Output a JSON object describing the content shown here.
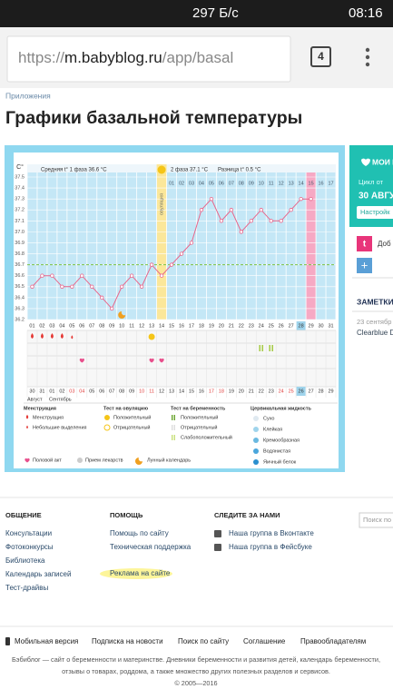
{
  "status_bar": {
    "speed": "297 Б/с",
    "time": "08:16"
  },
  "browser": {
    "url_scheme": "https://",
    "url_host": "m.babyblog.ru",
    "url_path": "/app/basal",
    "tab_count": 4
  },
  "breadcrumb": "Приложения",
  "title": "Графики базальной температуры",
  "chart_data": {
    "type": "line",
    "y_label": "C°",
    "summary": {
      "phase1": "Средняя t° 1 фаза 36.6 °C",
      "phase2": "2 фаза 37.1 °C",
      "difference": "Разница t° 0.5 °C"
    },
    "ovulation_label": "овуляция",
    "ovulation_index": 13,
    "categories": [
      "01",
      "02",
      "03",
      "04",
      "05",
      "06",
      "07",
      "08",
      "09",
      "10",
      "11",
      "12",
      "13",
      "14",
      "15",
      "16",
      "17",
      "18",
      "19",
      "20",
      "21",
      "22",
      "23",
      "24",
      "25",
      "26",
      "27",
      "28",
      "29",
      "30",
      "31"
    ],
    "phase2_days": [
      "01",
      "02",
      "03",
      "04",
      "05",
      "06",
      "07",
      "08",
      "09",
      "10",
      "11",
      "12",
      "13",
      "14",
      "15",
      "16",
      "17"
    ],
    "values": [
      36.5,
      36.6,
      36.6,
      36.5,
      36.5,
      36.6,
      36.5,
      36.4,
      36.3,
      36.5,
      36.6,
      36.5,
      36.7,
      36.6,
      36.7,
      36.8,
      36.9,
      37.2,
      37.3,
      37.1,
      37.2,
      37.0,
      37.1,
      37.2,
      37.1,
      37.1,
      37.2,
      37.3,
      37.3,
      null,
      null
    ],
    "color": "#e8658a",
    "coverline": 36.7,
    "coverline_color": "#7cc242",
    "today_index": 27,
    "period_index": 28,
    "ylim": [
      36.2,
      37.5
    ],
    "yticks": [
      36.2,
      36.3,
      36.4,
      36.5,
      36.6,
      36.7,
      36.8,
      36.9,
      {
        "value": 37,
        "label": "37.0"
      },
      37.1,
      37.2,
      37.3,
      37.4,
      37.5
    ],
    "dates": [
      "30",
      "31",
      "01",
      "02",
      "03",
      "04",
      "05",
      "06",
      "07",
      "08",
      "09",
      "10",
      "11",
      "12",
      "13",
      "14",
      "15",
      "16",
      "17",
      "18",
      "19",
      "20",
      "21",
      "22",
      "23",
      "24",
      "25",
      "26",
      "27",
      "28",
      "29"
    ],
    "weekend_indices": [
      4,
      5,
      11,
      12,
      18,
      19,
      25,
      26
    ],
    "months": [
      "Август",
      "Сентябрь"
    ],
    "menstruation_indices": [
      0,
      1,
      2,
      3
    ],
    "light_discharge_indices": [
      4
    ],
    "intercourse_indices": [
      5,
      12,
      13
    ],
    "ovulation_test_indices": [
      12
    ],
    "moon_indices": [
      9
    ],
    "pregnancy_test_indices": [
      23,
      24
    ]
  },
  "legend": {
    "menstruation": {
      "title": "Менструация",
      "items": [
        "Менструация",
        "Небольшие выделения"
      ]
    },
    "ovulation_test": {
      "title": "Тест на овуляцию",
      "items": [
        "Положительный",
        "Отрицательный"
      ]
    },
    "pregnancy_test": {
      "title": "Тест на беременность",
      "items": [
        "Положительный",
        "Отрицательный",
        "Слабоположительный"
      ]
    },
    "cervical": {
      "title": "Цервикальная жидкость",
      "items": [
        "Сухо",
        "Клейкая",
        "Кремообразная",
        "Водянистая",
        "Яичный белок"
      ]
    },
    "other": [
      "Половой акт",
      "Прием лекарств",
      "Лунный календарь"
    ]
  },
  "sidebar": {
    "heading": "МОИ П",
    "cycle_label": "Цикл от",
    "cycle_date": "30 АВГУ",
    "settings": "Настройк",
    "add": "Доб",
    "notes": "ЗАМЕТКИ",
    "note_date": "23 сентябр",
    "note_text": "Clearblue D"
  },
  "footer": {
    "columns": [
      {
        "title": "ОБЩЕНИЕ",
        "links": [
          "Консультации",
          "Фотоконкурсы",
          "Библиотека",
          "Календарь записей",
          "Тест-драйвы"
        ]
      },
      {
        "title": "ПОМОЩЬ",
        "links": [
          "Помощь по сайту",
          "Техническая поддержка",
          "Реклама на сайте"
        ]
      },
      {
        "title": "СЛЕДИТЕ ЗА НАМИ",
        "links": [
          "Наша группа в Вконтакте",
          "Наша группа в Фейсбуке"
        ]
      }
    ],
    "search": "Поиск по",
    "bottom_links": [
      "Мобильная версия",
      "Подписка на новости",
      "Поиск по сайту",
      "Соглашение",
      "Правообладателям"
    ],
    "about": [
      "Бэби​блог — сайт о беременности и материнстве. Дневники беременности и развития детей, календарь беременности,",
      "отзывы о товарах, роддома, а также множество других полезных разделов и сервисов.",
      "© 2005—2016"
    ]
  }
}
